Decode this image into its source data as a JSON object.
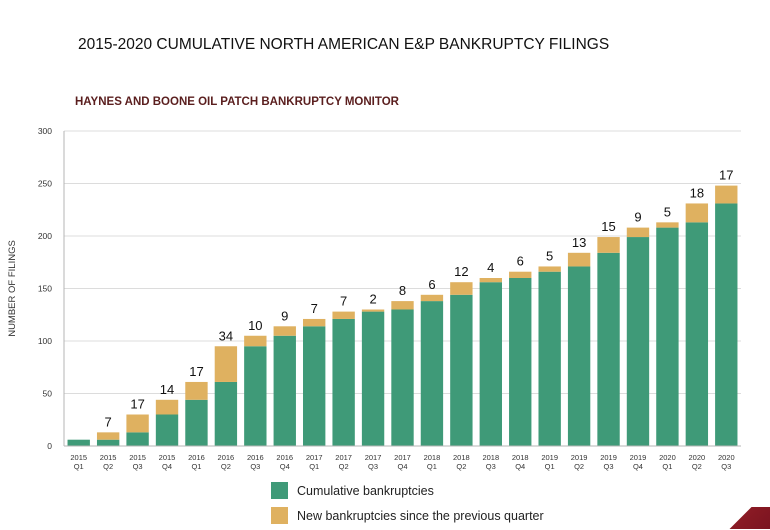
{
  "header": {
    "title": "2015-2020 CUMULATIVE NORTH AMERICAN E&P BANKRUPTCY FILINGS",
    "subtitle": "HAYNES AND BOONE OIL PATCH BANKRUPTCY MONITOR"
  },
  "legend": {
    "cumulative_label": "Cumulative bankruptcies",
    "new_label": "New bankruptcies since the previous quarter"
  },
  "colors": {
    "cumulative": "#3f9a78",
    "new": "#dfb160",
    "title_text": "#5a1e1e",
    "accent": "#8a1a24"
  },
  "chart_data": {
    "type": "bar",
    "stacked": true,
    "title": "2015-2020 CUMULATIVE NORTH AMERICAN E&P BANKRUPTCY FILINGS",
    "subtitle": "HAYNES AND BOONE OIL PATCH BANKRUPTCY MONITOR",
    "ylabel": "NUMBER OF FILINGS",
    "xlabel": "",
    "ylim": [
      0,
      300
    ],
    "yticks": [
      0,
      50,
      100,
      150,
      200,
      250,
      300
    ],
    "grid": true,
    "legend_position": "bottom",
    "categories": [
      [
        "2015",
        "Q1"
      ],
      [
        "2015",
        "Q2"
      ],
      [
        "2015",
        "Q3"
      ],
      [
        "2015",
        "Q4"
      ],
      [
        "2016",
        "Q1"
      ],
      [
        "2016",
        "Q2"
      ],
      [
        "2016",
        "Q3"
      ],
      [
        "2016",
        "Q4"
      ],
      [
        "2017",
        "Q1"
      ],
      [
        "2017",
        "Q2"
      ],
      [
        "2017",
        "Q3"
      ],
      [
        "2017",
        "Q4"
      ],
      [
        "2018",
        "Q1"
      ],
      [
        "2018",
        "Q2"
      ],
      [
        "2018",
        "Q3"
      ],
      [
        "2018",
        "Q4"
      ],
      [
        "2019",
        "Q1"
      ],
      [
        "2019",
        "Q2"
      ],
      [
        "2019",
        "Q3"
      ],
      [
        "2019",
        "Q4"
      ],
      [
        "2020",
        "Q1"
      ],
      [
        "2020",
        "Q2"
      ],
      [
        "2020",
        "Q3"
      ]
    ],
    "series": [
      {
        "name": "Cumulative bankruptcies",
        "values": [
          6,
          6,
          13,
          30,
          44,
          61,
          95,
          105,
          114,
          121,
          128,
          130,
          138,
          144,
          156,
          160,
          166,
          171,
          184,
          199,
          208,
          213,
          231
        ]
      },
      {
        "name": "New bankruptcies since the previous quarter",
        "values": [
          0,
          7,
          17,
          14,
          17,
          34,
          10,
          9,
          7,
          7,
          2,
          8,
          6,
          12,
          4,
          6,
          5,
          13,
          15,
          9,
          5,
          18,
          17
        ]
      }
    ],
    "data_labels": [
      "",
      "7",
      "17",
      "14",
      "17",
      "34",
      "10",
      "9",
      "7",
      "7",
      "2",
      "8",
      "6",
      "12",
      "4",
      "6",
      "5",
      "13",
      "15",
      "9",
      "5",
      "18",
      "17"
    ]
  }
}
